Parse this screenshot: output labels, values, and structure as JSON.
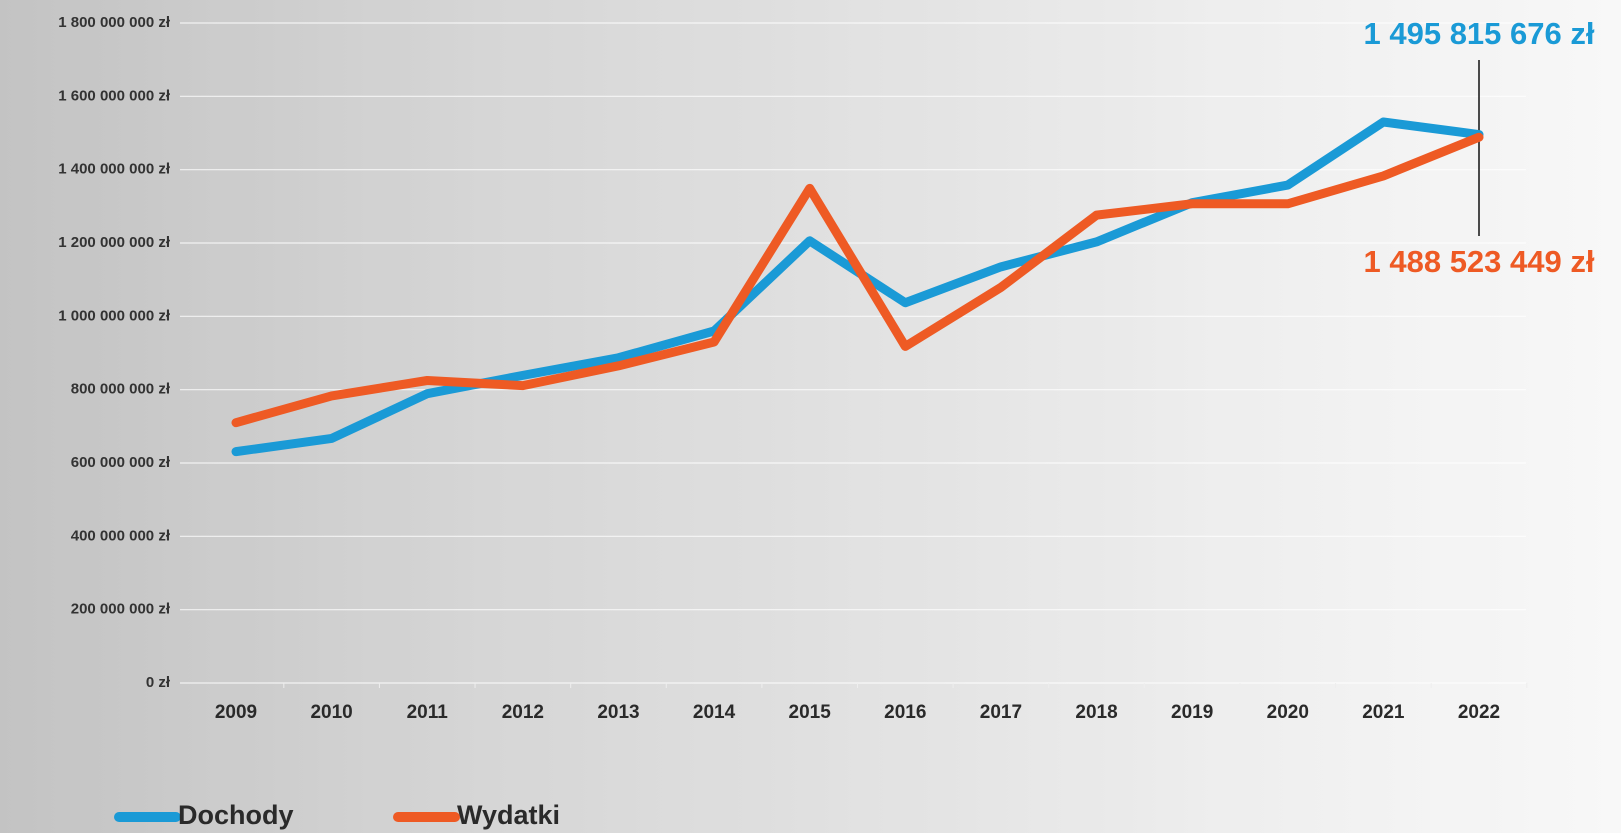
{
  "chart_data": {
    "type": "line",
    "categories": [
      "2009",
      "2010",
      "2011",
      "2012",
      "2013",
      "2014",
      "2015",
      "2016",
      "2017",
      "2018",
      "2019",
      "2020",
      "2021",
      "2022"
    ],
    "series": [
      {
        "name": "Dochody",
        "color": "#1a9ad6",
        "values": [
          631000000,
          667000000,
          789000000,
          839000000,
          887000000,
          960000000,
          1206000000,
          1037000000,
          1135000000,
          1203000000,
          1310000000,
          1358000000,
          1530000000,
          1495815676
        ],
        "value_labels": [
          null,
          null,
          null,
          null,
          null,
          null,
          null,
          null,
          null,
          null,
          null,
          null,
          null,
          "1 495 815 676 zł"
        ]
      },
      {
        "name": "Wydatki",
        "color": "#ee5a24",
        "values": [
          710000000,
          783000000,
          825000000,
          811000000,
          865000000,
          930000000,
          1349000000,
          918000000,
          1079000000,
          1276000000,
          1307000000,
          1307000000,
          1383000000,
          1488523449
        ],
        "value_labels": [
          null,
          null,
          null,
          null,
          null,
          null,
          null,
          null,
          null,
          null,
          null,
          null,
          null,
          "1 488 523 449 zł"
        ]
      }
    ],
    "ylim": [
      0,
      1800000000
    ],
    "yticks": [
      {
        "value": 0,
        "label": "0 zł"
      },
      {
        "value": 200000000,
        "label": "200 000 000 zł"
      },
      {
        "value": 400000000,
        "label": "400 000 000 zł"
      },
      {
        "value": 600000000,
        "label": "600 000 000 zł"
      },
      {
        "value": 800000000,
        "label": "800 000 000 zł"
      },
      {
        "value": 1000000000,
        "label": "1 000 000 000 zł"
      },
      {
        "value": 1200000000,
        "label": "1 200 000 000 zł"
      },
      {
        "value": 1400000000,
        "label": "1 400 000 000 zł"
      },
      {
        "value": 1600000000,
        "label": "1 600 000 000 zł"
      },
      {
        "value": 1800000000,
        "label": "1 800 000 000 zł"
      }
    ],
    "grid": true
  }
}
